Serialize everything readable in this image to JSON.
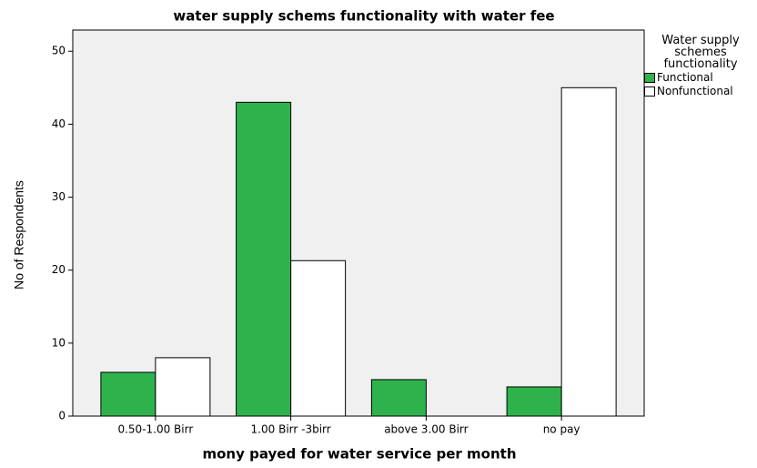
{
  "chart_data": {
    "type": "bar",
    "title": "water supply schems functionality with water fee",
    "x_label": "mony payed for water service per month",
    "y_label": "No of Respondents",
    "legend_title": "Water supply schemes functionality",
    "categories": [
      "0.50-1.00 Birr",
      "1.00 Birr -3birr",
      "above 3.00 Birr",
      "no pay"
    ],
    "series": [
      {
        "name": "Functional",
        "color": "#2eb34c",
        "values": [
          6,
          43,
          5,
          4
        ]
      },
      {
        "name": "Nonfunctional",
        "color": "#ffffff",
        "values": [
          8,
          21.3,
          0,
          45
        ]
      }
    ],
    "ylim": [
      0,
      52.9
    ],
    "yticks": [
      0,
      10,
      20,
      30,
      40,
      50
    ],
    "legend": "right"
  }
}
